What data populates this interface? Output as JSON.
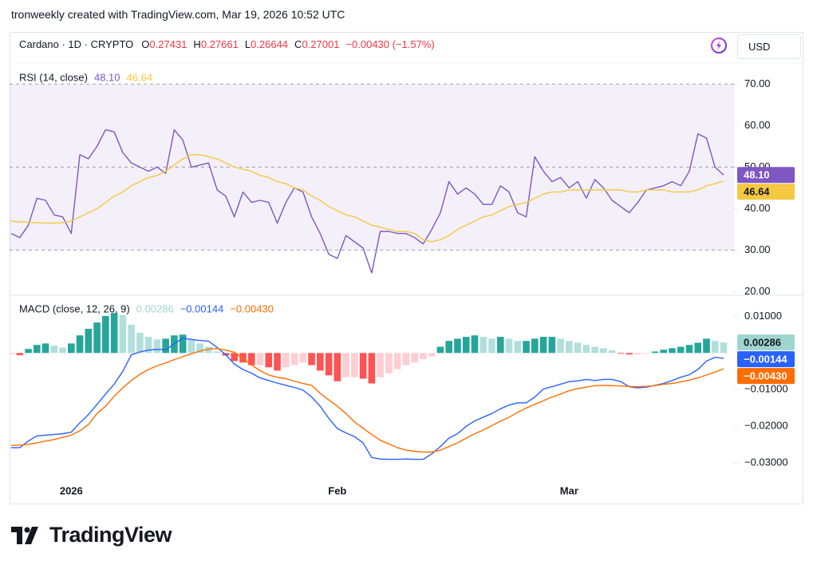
{
  "header": {
    "caption": "tronweekly created with TradingView.com, Mar 19, 2026 10:52 UTC",
    "symbol": "Cardano · 1D · CRYPTO",
    "ohlc": [
      {
        "key": "O",
        "value": "0.27431"
      },
      {
        "key": "H",
        "value": "0.27661"
      },
      {
        "key": "L",
        "value": "0.26644"
      },
      {
        "key": "C",
        "value": "0.27001"
      }
    ],
    "change": "−0.00430 (−1.57%)",
    "value_color": "#f23645",
    "currency": "USD"
  },
  "chart_data": [
    {
      "type": "line",
      "title": "RSI (14, close)",
      "ylim": [
        19.5,
        74.5
      ],
      "yticks": [
        {
          "value": 70,
          "label": "70.00"
        },
        {
          "value": 60,
          "label": "60.00"
        },
        {
          "value": 50,
          "label": "50.00"
        },
        {
          "value": 40,
          "label": "40.00"
        },
        {
          "value": 30,
          "label": "30.00"
        },
        {
          "value": 20,
          "label": "20.00"
        }
      ],
      "levels": [
        30,
        50,
        70
      ],
      "band_color": "#7e57c2",
      "series": [
        {
          "color": "#7e57c2",
          "last_label": "48.10",
          "label_text_color": "#ffffff",
          "values": [
            34,
            33,
            36,
            42.5,
            42,
            38.5,
            38,
            34,
            53,
            52,
            55,
            59,
            58.5,
            53.5,
            51,
            50,
            49,
            50,
            48.5,
            59,
            56.5,
            50,
            50.5,
            51,
            44.5,
            43,
            38,
            44,
            41.5,
            42,
            41.5,
            36.5,
            41.5,
            45,
            44,
            38,
            34,
            29,
            28,
            33.5,
            32,
            30.5,
            24.5,
            34.5,
            34.5,
            34,
            34,
            33,
            31.5,
            35,
            39,
            46.5,
            43.5,
            45,
            43.5,
            41,
            41,
            45.5,
            44,
            39,
            38,
            52.5,
            49,
            46.5,
            47.5,
            45,
            46.5,
            42.5,
            47,
            45,
            42,
            40.5,
            39,
            41.5,
            44.5,
            45,
            45.5,
            46.5,
            45.5,
            49,
            58,
            57,
            50,
            48.1
          ]
        },
        {
          "color": "#f5c842",
          "last_label": "46.64",
          "label_text_color": "#131722",
          "values": [
            37,
            36.8,
            36.7,
            36.6,
            36.5,
            36.5,
            36.6,
            37,
            38,
            39,
            40,
            41.5,
            43,
            44,
            45.5,
            46.5,
            47.5,
            48,
            49,
            50.5,
            52,
            53,
            53,
            52.5,
            52,
            51,
            50,
            49.5,
            49,
            48,
            47.5,
            46.5,
            46,
            45,
            44.5,
            43,
            42,
            40.5,
            39.5,
            38.5,
            38,
            37,
            36,
            35.5,
            35,
            34.5,
            34.5,
            34,
            32.5,
            32,
            32.5,
            33.5,
            35,
            36,
            37,
            38,
            38.5,
            39.5,
            40.5,
            41,
            41.5,
            42.5,
            43.5,
            44,
            44,
            44.5,
            44.5,
            44.5,
            44.5,
            44.5,
            44.5,
            44.5,
            44,
            44,
            44.5,
            44.5,
            44.5,
            44,
            44,
            44,
            44.5,
            45.5,
            46,
            46.64
          ]
        }
      ]
    },
    {
      "type": "combo",
      "title": "MACD (close, 12, 26, 9)",
      "categories": [
        null,
        null,
        null,
        null,
        null,
        null,
        null,
        "2026",
        null,
        null,
        null,
        null,
        null,
        null,
        null,
        null,
        null,
        null,
        null,
        null,
        null,
        null,
        null,
        null,
        null,
        null,
        null,
        null,
        null,
        null,
        null,
        null,
        null,
        null,
        null,
        null,
        null,
        null,
        "Feb",
        null,
        null,
        null,
        null,
        null,
        null,
        null,
        null,
        null,
        null,
        null,
        null,
        null,
        null,
        null,
        null,
        null,
        null,
        null,
        null,
        null,
        null,
        null,
        null,
        null,
        null,
        "Mar",
        null,
        null,
        null,
        null,
        null,
        null,
        null,
        null,
        null,
        null,
        null,
        null,
        null,
        null,
        null,
        null,
        null,
        null
      ],
      "ylim": [
        -0.0343,
        0.0153
      ],
      "yticks": [
        {
          "value": 0.01,
          "label": "0.01000"
        },
        {
          "value": -0.01,
          "label": "−0.01000"
        },
        {
          "value": -0.02,
          "label": "−0.02000"
        },
        {
          "value": -0.03,
          "label": "−0.03000"
        }
      ],
      "series": [
        {
          "type": "bar",
          "colors": [
            "#26a69a",
            "#b2dfdb",
            "#ff5252",
            "#ffcdd2"
          ],
          "color": "#9ed6cf",
          "last_label": "0.00286",
          "label_text_color": "#131722",
          "values": [
            -0.0004,
            -0.0006,
            0.0011,
            0.0022,
            0.0026,
            0.002,
            0.0015,
            0.0026,
            0.0048,
            0.0066,
            0.0083,
            0.0101,
            0.0109,
            0.0103,
            0.0077,
            0.0055,
            0.0044,
            0.0037,
            0.0039,
            0.0048,
            0.005,
            0.0037,
            0.0026,
            0.0017,
            0.0004,
            -0.0007,
            -0.0022,
            -0.0026,
            -0.0033,
            -0.0033,
            -0.0039,
            -0.0048,
            -0.0039,
            -0.0033,
            -0.0026,
            -0.0033,
            -0.0048,
            -0.0061,
            -0.0077,
            -0.0066,
            -0.0066,
            -0.007,
            -0.0083,
            -0.0066,
            -0.0055,
            -0.0044,
            -0.0033,
            -0.0026,
            -0.0017,
            -0.0009,
            0.0017,
            0.0033,
            0.0039,
            0.0044,
            0.0048,
            0.0044,
            0.0039,
            0.0044,
            0.0039,
            0.0033,
            0.0033,
            0.0039,
            0.0044,
            0.0044,
            0.0039,
            0.0033,
            0.0028,
            0.0022,
            0.0017,
            0.0013,
            0.0007,
            -0.0002,
            -0.0004,
            -0.0004,
            -0.0002,
            0.0004,
            0.0009,
            0.0013,
            0.0017,
            0.0022,
            0.0028,
            0.0039,
            0.0033,
            0.00286
          ]
        },
        {
          "type": "line",
          "color": "#2962ff",
          "last_label": "−0.00144",
          "label_text_color": "#ffffff",
          "values": [
            -0.0258,
            -0.0258,
            -0.024,
            -0.0226,
            -0.0224,
            -0.0222,
            -0.022,
            -0.0216,
            -0.019,
            -0.0168,
            -0.014,
            -0.0112,
            -0.0085,
            -0.005,
            -0.0005,
            0.0003,
            0.0008,
            0.001,
            0.0009,
            0.0025,
            0.004,
            0.0037,
            0.0034,
            0.0032,
            0.0015,
            -0.0005,
            -0.003,
            -0.0045,
            -0.0055,
            -0.0068,
            -0.0075,
            -0.0082,
            -0.0088,
            -0.0094,
            -0.0101,
            -0.012,
            -0.0145,
            -0.0178,
            -0.0206,
            -0.0218,
            -0.0228,
            -0.0245,
            -0.0285,
            -0.0289,
            -0.029,
            -0.029,
            -0.0289,
            -0.029,
            -0.029,
            -0.0275,
            -0.0255,
            -0.0232,
            -0.022,
            -0.02,
            -0.0185,
            -0.0175,
            -0.0165,
            -0.0152,
            -0.0142,
            -0.0136,
            -0.0136,
            -0.012,
            -0.0098,
            -0.0092,
            -0.0085,
            -0.0078,
            -0.0076,
            -0.0072,
            -0.0075,
            -0.0072,
            -0.0072,
            -0.0078,
            -0.0092,
            -0.0095,
            -0.0093,
            -0.0088,
            -0.0083,
            -0.0075,
            -0.0066,
            -0.0059,
            -0.0045,
            -0.0022,
            -0.0012,
            -0.00144
          ]
        },
        {
          "type": "line",
          "color": "#ff6d00",
          "last_label": "−0.00430",
          "label_text_color": "#ffffff",
          "values": [
            -0.0252,
            -0.0251,
            -0.0249,
            -0.0245,
            -0.024,
            -0.0236,
            -0.023,
            -0.0224,
            -0.0212,
            -0.0195,
            -0.0165,
            -0.0145,
            -0.0118,
            -0.0095,
            -0.0075,
            -0.0058,
            -0.0045,
            -0.0035,
            -0.0027,
            -0.0018,
            -0.001,
            -0.0002,
            0.0005,
            0.0011,
            0.0012,
            0.0008,
            0.0002,
            -0.0015,
            -0.0033,
            -0.0048,
            -0.006,
            -0.0066,
            -0.007,
            -0.0077,
            -0.0083,
            -0.0088,
            -0.011,
            -0.0128,
            -0.0145,
            -0.0165,
            -0.0188,
            -0.0205,
            -0.0222,
            -0.0238,
            -0.0248,
            -0.0258,
            -0.0265,
            -0.0268,
            -0.027,
            -0.027,
            -0.0265,
            -0.0255,
            -0.0245,
            -0.0232,
            -0.022,
            -0.021,
            -0.0198,
            -0.0186,
            -0.0175,
            -0.0162,
            -0.015,
            -0.014,
            -0.013,
            -0.012,
            -0.0112,
            -0.0103,
            -0.0097,
            -0.0093,
            -0.0089,
            -0.0088,
            -0.0089,
            -0.009,
            -0.0091,
            -0.0092,
            -0.0091,
            -0.0089,
            -0.0085,
            -0.0083,
            -0.0079,
            -0.0074,
            -0.0068,
            -0.006,
            -0.0052,
            -0.0043
          ]
        }
      ]
    }
  ],
  "footer": {
    "logo": "TradingView"
  }
}
